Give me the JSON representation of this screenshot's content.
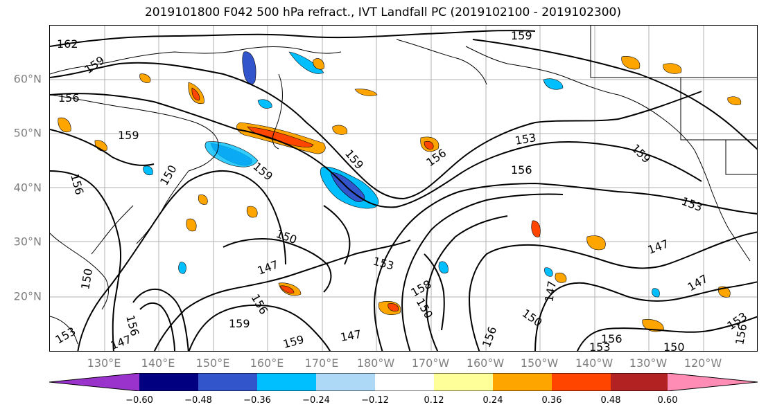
{
  "title": "2019101800 F042 500 hPa refract., IVT Landfall PC (2019102100 - 2019102300)",
  "map": {
    "lat_labels": [
      "60°N",
      "50°N",
      "40°N",
      "30°N",
      "20°N"
    ],
    "lon_labels": [
      "130°E",
      "140°E",
      "150°E",
      "160°E",
      "170°E",
      "180°W",
      "170°W",
      "160°W",
      "150°W",
      "140°W",
      "130°W",
      "120°W"
    ],
    "contour_labels": [
      "162",
      "159",
      "156",
      "159",
      "156",
      "159",
      "159",
      "150",
      "150",
      "147",
      "153",
      "156",
      "153",
      "159",
      "159",
      "156",
      "147",
      "147",
      "158",
      "150",
      "147",
      "150",
      "156",
      "150",
      "147",
      "153",
      "150",
      "153",
      "153",
      "156",
      "156",
      "159",
      "156",
      "159",
      "153",
      "147",
      "147",
      "150",
      "153",
      "156"
    ]
  },
  "colorbar": {
    "colors": [
      "#9933cc",
      "#000080",
      "#3355cc",
      "#00bfff",
      "#add8f6",
      "#ffffff",
      "#ffff99",
      "#ffe080",
      "#ffa500",
      "#ff4500",
      "#b22222",
      "#ff8cb4"
    ],
    "tick_labels": [
      "−0.60",
      "−0.48",
      "−0.36",
      "−0.24",
      "−0.12",
      "0.12",
      "0.24",
      "0.36",
      "0.48",
      "0.60"
    ]
  }
}
